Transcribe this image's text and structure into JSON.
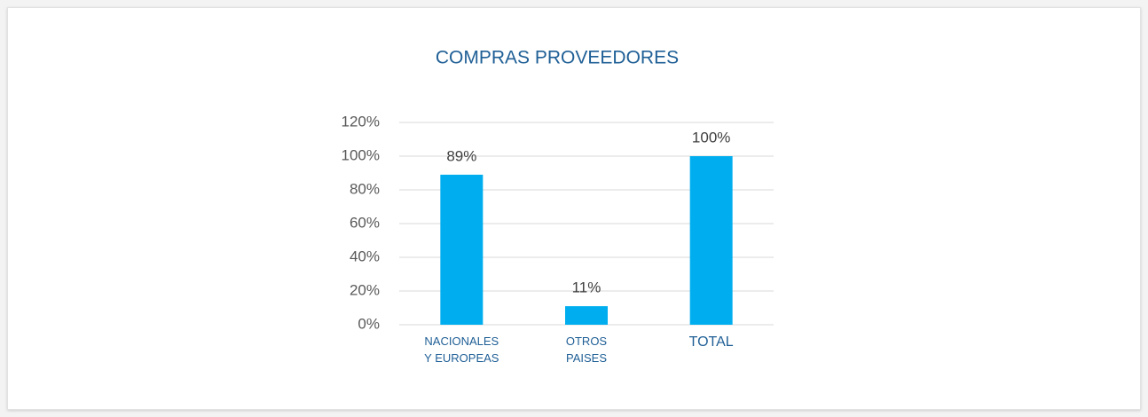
{
  "chart_data": {
    "type": "bar",
    "title": "COMPRAS PROVEEDORES",
    "categories": [
      "NACIONALES\nY EUROPEAS",
      "OTROS\nPAISES",
      "TOTAL"
    ],
    "values": [
      89,
      11,
      100
    ],
    "value_labels": [
      "89%",
      "11%",
      "100%"
    ],
    "color": "#00aeef",
    "ylim": [
      0,
      120
    ],
    "yticks": [
      {
        "value": 0,
        "label": "0%"
      },
      {
        "value": 20,
        "label": "20%"
      },
      {
        "value": 40,
        "label": "40%"
      },
      {
        "value": 60,
        "label": "60%"
      },
      {
        "value": 80,
        "label": "80%"
      },
      {
        "value": 100,
        "label": "100%"
      },
      {
        "value": 120,
        "label": "120%"
      }
    ],
    "grid": true
  }
}
